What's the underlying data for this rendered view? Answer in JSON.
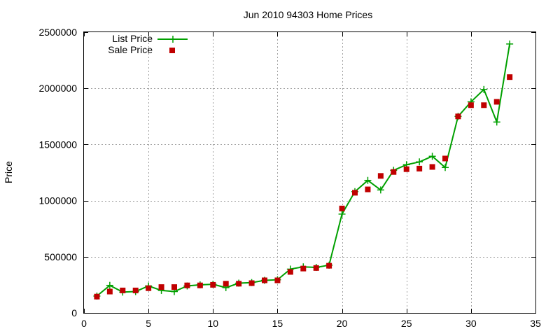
{
  "chart_data": {
    "type": "line",
    "title": "Jun 2010 94303 Home Prices",
    "xlabel": "",
    "ylabel": "Price",
    "xlim": [
      0,
      35
    ],
    "ylim": [
      0,
      2500000
    ],
    "xticks": [
      0,
      5,
      10,
      15,
      20,
      25,
      30,
      35
    ],
    "yticks": [
      0,
      500000,
      1000000,
      1500000,
      2000000,
      2500000
    ],
    "grid": true,
    "legend_position": "top-left",
    "series": [
      {
        "name": "List Price",
        "style": "line-with-plus-markers",
        "color": "#00a000",
        "x": [
          1,
          2,
          3,
          4,
          5,
          6,
          7,
          8,
          9,
          10,
          11,
          12,
          13,
          14,
          15,
          16,
          17,
          18,
          19,
          20,
          21,
          22,
          23,
          24,
          25,
          26,
          27,
          28,
          29,
          30,
          31,
          32,
          33
        ],
        "values": [
          150000,
          245000,
          185000,
          190000,
          240000,
          200000,
          190000,
          240000,
          250000,
          255000,
          225000,
          265000,
          270000,
          290000,
          295000,
          390000,
          410000,
          405000,
          425000,
          880000,
          1080000,
          1180000,
          1095000,
          1270000,
          1320000,
          1345000,
          1395000,
          1295000,
          1750000,
          1880000,
          1990000,
          1700000,
          2395000
        ]
      },
      {
        "name": "Sale Price",
        "style": "square-markers",
        "color": "#c00000",
        "x": [
          1,
          2,
          3,
          4,
          5,
          6,
          7,
          8,
          9,
          10,
          11,
          12,
          13,
          14,
          15,
          16,
          17,
          18,
          19,
          20,
          21,
          22,
          23,
          24,
          25,
          26,
          27,
          28,
          29,
          30,
          31,
          32,
          33
        ],
        "values": [
          145000,
          190000,
          200000,
          200000,
          220000,
          230000,
          230000,
          245000,
          245000,
          250000,
          260000,
          260000,
          265000,
          290000,
          290000,
          365000,
          395000,
          400000,
          420000,
          930000,
          1070000,
          1100000,
          1220000,
          1255000,
          1280000,
          1285000,
          1300000,
          1375000,
          1750000,
          1850000,
          1850000,
          1880000,
          2100000
        ]
      }
    ]
  }
}
